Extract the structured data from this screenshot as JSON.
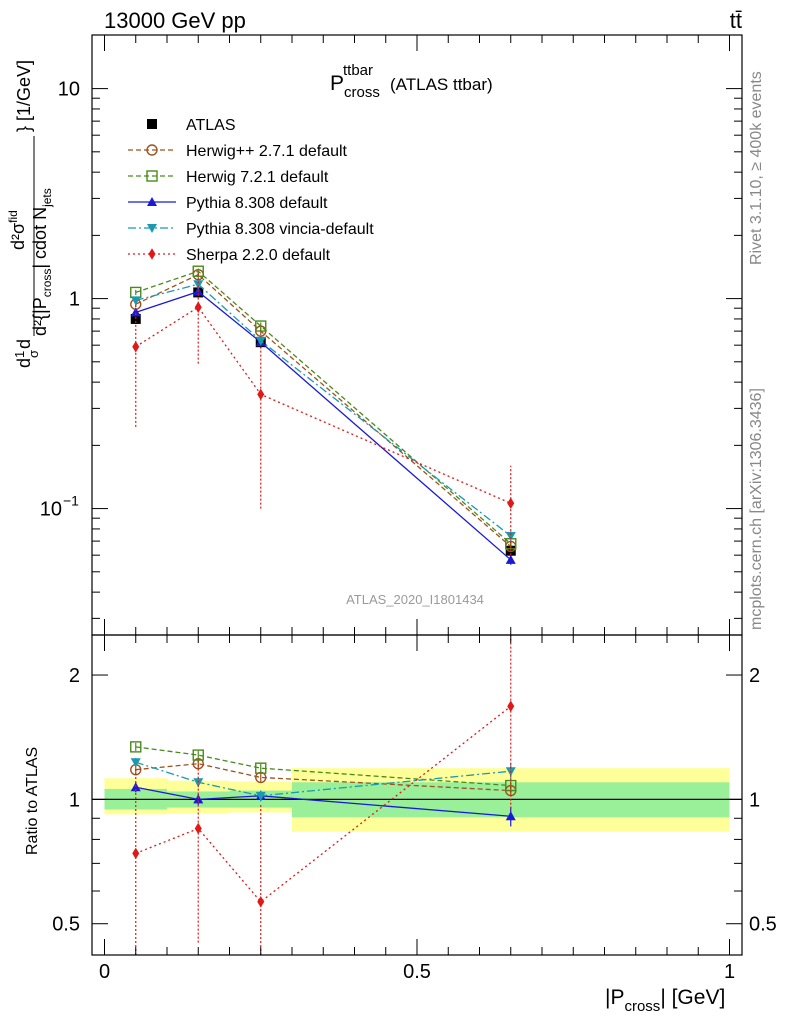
{
  "header": {
    "left": "13000 GeV pp",
    "right": "tt̄"
  },
  "side_labels": {
    "rivet": "Rivet 3.1.10, ≥ 400k events",
    "mcplots": "mcplots.cern.ch [arXiv:1306.3436]"
  },
  "chart_data": [
    {
      "type": "line",
      "panel": "main",
      "title_main": "P",
      "title_sup": "ttbar",
      "title_sub": "cross",
      "title_suffix": "(ATLAS ttbar)",
      "watermark": "ATLAS_2020_I1801434",
      "ylabel_parts": {
        "prefix": "d",
        "frac1": "1",
        "sigma": "σ",
        "d": "d",
        "d2": "d²{|P",
        "cross": "cross",
        "mid": "| cdot N",
        "jets": "jets",
        "num": "d²σ",
        "fid": "fid",
        "unit": "} [1/GeV]"
      },
      "yscale": "log",
      "ylim": [
        0.025,
        18
      ],
      "xlim": [
        -0.02,
        1.02
      ],
      "ytick_labels": {
        "1": "1",
        "10": "10"
      },
      "ytick_label_low": {
        "base": "10",
        "exp": "−1"
      },
      "x": [
        0.05,
        0.15,
        0.25,
        0.65
      ],
      "series": [
        {
          "name": "ATLAS",
          "color": "#000000",
          "marker": "square-filled",
          "line": "none",
          "values": [
            0.8,
            1.07,
            0.62,
            0.063
          ],
          "err_lo": [
            0.76,
            1.02,
            0.58,
            0.057
          ],
          "err_hi": [
            0.85,
            1.12,
            0.66,
            0.069
          ]
        },
        {
          "name": "Herwig++ 2.7.1 default",
          "color": "#a0521e",
          "marker": "circle-open",
          "line": "dashed",
          "values": [
            0.94,
            1.3,
            0.7,
            0.066
          ],
          "err_lo": [
            0.91,
            1.26,
            0.67,
            0.064
          ],
          "err_hi": [
            0.97,
            1.34,
            0.73,
            0.068
          ]
        },
        {
          "name": "Herwig 7.2.1 default",
          "color": "#4a8a1a",
          "marker": "square-open",
          "line": "dashed",
          "values": [
            1.07,
            1.35,
            0.74,
            0.068
          ],
          "err_lo": [
            1.04,
            1.31,
            0.71,
            0.066
          ],
          "err_hi": [
            1.1,
            1.39,
            0.77,
            0.07
          ]
        },
        {
          "name": "Pythia 8.308 default",
          "color": "#1a1ad6",
          "marker": "triangle-up",
          "line": "solid",
          "values": [
            0.86,
            1.08,
            0.62,
            0.057
          ],
          "err_lo": [
            0.83,
            1.05,
            0.6,
            0.054
          ],
          "err_hi": [
            0.89,
            1.11,
            0.64,
            0.06
          ]
        },
        {
          "name": "Pythia 8.308 vincia-default",
          "color": "#1a9ab0",
          "marker": "triangle-down",
          "line": "dashdot",
          "values": [
            0.98,
            1.17,
            0.63,
            0.074
          ],
          "err_lo": [
            0.95,
            1.13,
            0.61,
            0.07
          ],
          "err_hi": [
            1.01,
            1.21,
            0.65,
            0.078
          ]
        },
        {
          "name": "Sherpa 2.2.0 default",
          "color": "#e01818",
          "marker": "diamond",
          "line": "dotted",
          "values": [
            0.59,
            0.91,
            0.35,
            0.106
          ],
          "err_lo": [
            0.245,
            0.49,
            0.1,
            0.06
          ],
          "err_hi": [
            0.95,
            1.33,
            0.6,
            0.16
          ]
        }
      ]
    },
    {
      "type": "line",
      "panel": "ratio",
      "ylabel": "Ratio to ATLAS",
      "xlabel_main": "|P",
      "xlabel_sub": "cross",
      "xlabel_suffix": "| [GeV]",
      "yscale": "log",
      "ylim": [
        0.42,
        2.5
      ],
      "xlim": [
        -0.02,
        1.02
      ],
      "ytick_labels": [
        {
          "value": 0.5,
          "label": "0.5"
        },
        {
          "value": 1,
          "label": "1"
        },
        {
          "value": 2,
          "label": "2"
        }
      ],
      "xtick_labels": [
        {
          "value": 0,
          "label": "0"
        },
        {
          "value": 0.5,
          "label": "0.5"
        },
        {
          "value": 1,
          "label": "1"
        }
      ],
      "bands": [
        {
          "x0": 0.0,
          "x1": 0.1,
          "inner": [
            0.945,
            1.06
          ],
          "outer": [
            0.92,
            1.125
          ]
        },
        {
          "x0": 0.1,
          "x1": 0.2,
          "inner": [
            0.955,
            1.045
          ],
          "outer": [
            0.925,
            1.11
          ]
        },
        {
          "x0": 0.2,
          "x1": 0.3,
          "inner": [
            0.955,
            1.05
          ],
          "outer": [
            0.93,
            1.105
          ]
        },
        {
          "x0": 0.3,
          "x1": 1.0,
          "inner": [
            0.905,
            1.1
          ],
          "outer": [
            0.835,
            1.19
          ]
        }
      ],
      "x": [
        0.05,
        0.15,
        0.25,
        0.65
      ],
      "series": [
        {
          "name": "Herwig++ 2.7.1 default",
          "color": "#a0521e",
          "marker": "circle-open",
          "line": "dashed",
          "values": [
            1.18,
            1.22,
            1.13,
            1.05
          ],
          "err_lo": [
            1.15,
            1.19,
            1.1,
            1.02
          ],
          "err_hi": [
            1.21,
            1.25,
            1.16,
            1.08
          ]
        },
        {
          "name": "Herwig 7.2.1 default",
          "color": "#4a8a1a",
          "marker": "square-open",
          "line": "dashed",
          "values": [
            1.34,
            1.28,
            1.19,
            1.08
          ],
          "err_lo": [
            1.31,
            1.25,
            1.16,
            1.05
          ],
          "err_hi": [
            1.37,
            1.31,
            1.22,
            1.11
          ]
        },
        {
          "name": "Pythia 8.308 default",
          "color": "#1a1ad6",
          "marker": "triangle-up",
          "line": "solid",
          "values": [
            1.07,
            1.0,
            1.02,
            0.91
          ],
          "err_lo": [
            1.04,
            0.97,
            0.99,
            0.86
          ],
          "err_hi": [
            1.1,
            1.03,
            1.05,
            0.96
          ]
        },
        {
          "name": "Pythia 8.308 vincia-default",
          "color": "#1a9ab0",
          "marker": "triangle-down",
          "line": "dashdot",
          "values": [
            1.23,
            1.1,
            1.02,
            1.17
          ],
          "err_lo": [
            1.2,
            1.07,
            0.99,
            1.12
          ],
          "err_hi": [
            1.26,
            1.13,
            1.05,
            1.22
          ]
        },
        {
          "name": "Sherpa 2.2.0 default",
          "color": "#e01818",
          "marker": "diamond",
          "line": "dotted",
          "values": [
            0.74,
            0.85,
            0.565,
            1.68
          ],
          "err_lo": [
            0.3,
            0.45,
            0.16,
            0.95
          ],
          "err_hi": [
            1.2,
            1.24,
            0.98,
            2.5
          ]
        }
      ]
    }
  ]
}
